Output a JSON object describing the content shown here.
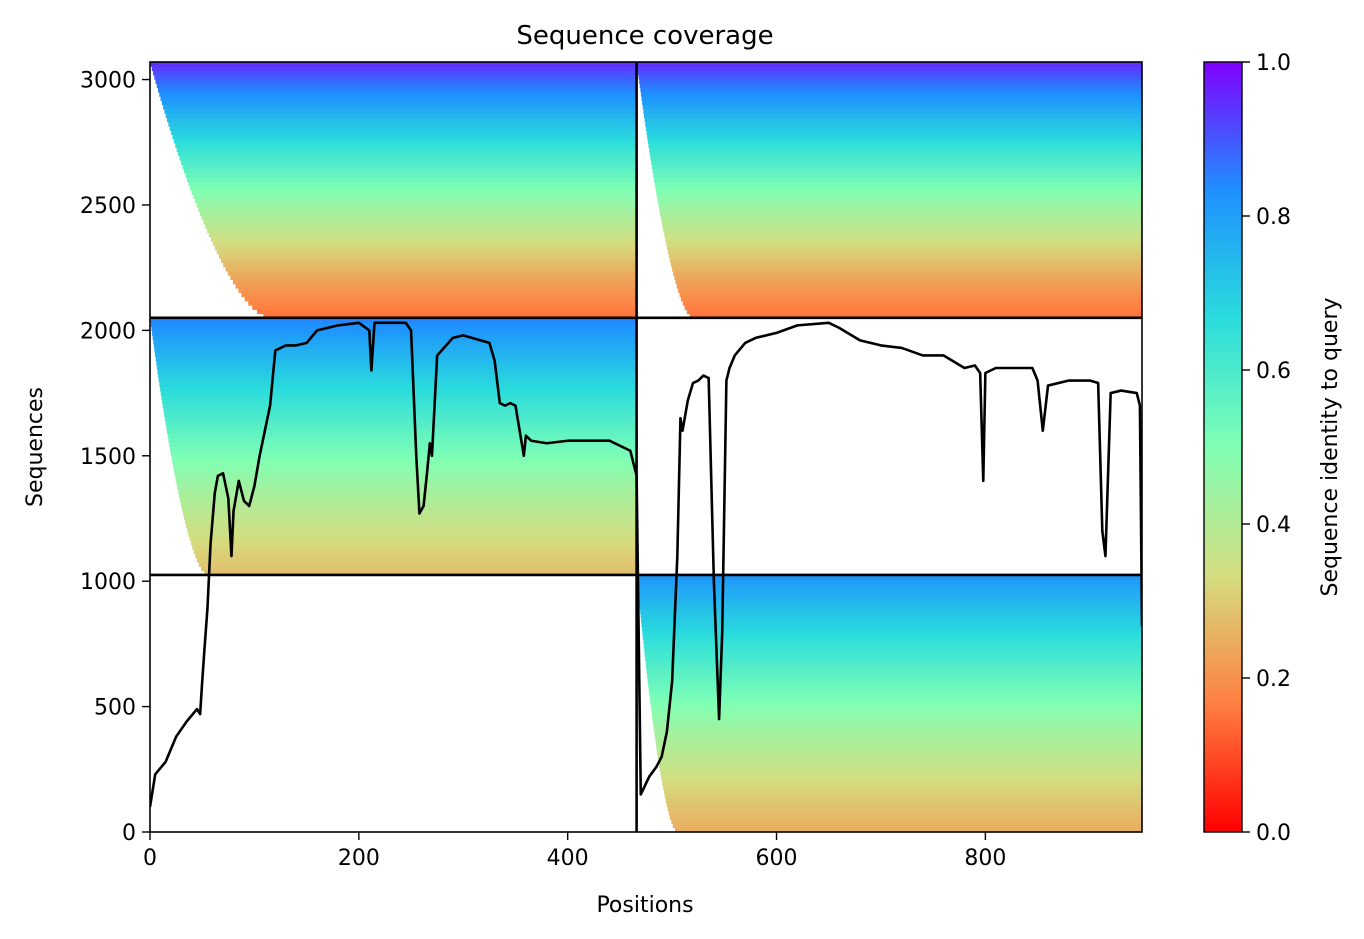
{
  "chart_data": {
    "type": "heatmap",
    "title": "Sequence coverage",
    "xlabel": "Positions",
    "ylabel": "Sequences",
    "xlim": [
      0,
      950
    ],
    "ylim": [
      0,
      3070
    ],
    "x_ticks": [
      0,
      200,
      400,
      600,
      800
    ],
    "y_ticks": [
      0,
      500,
      1000,
      1500,
      2000,
      2500,
      3000
    ],
    "colorbar": {
      "label": "Sequence identity to query",
      "range": [
        0,
        1
      ],
      "ticks": [
        "0.0",
        "0.2",
        "0.4",
        "0.6",
        "0.8",
        "1.0"
      ],
      "colormap": "rainbow_r",
      "colors": [
        "#ff0000",
        "#ff7f41",
        "#d4dd80",
        "#80ffb4",
        "#2adcdc",
        "#1e90ff",
        "#7f00ff"
      ]
    },
    "grid": false,
    "block_boundaries": {
      "x": 466,
      "y": [
        1025,
        2050
      ]
    },
    "blocks": [
      {
        "name": "upper-left",
        "x": [
          0,
          466
        ],
        "y": [
          2050,
          3070
        ],
        "identity_bottom": 0.15,
        "identity_top": 0.95,
        "coverage_start_top": 0,
        "coverage_start_bottom": 115
      },
      {
        "name": "upper-right",
        "x": [
          466,
          950
        ],
        "y": [
          2050,
          3070
        ],
        "identity_bottom": 0.15,
        "identity_top": 0.95,
        "coverage_start_top": 466,
        "coverage_start_bottom": 520
      },
      {
        "name": "middle-left",
        "x": [
          0,
          466
        ],
        "y": [
          1025,
          2050
        ],
        "identity_bottom": 0.28,
        "identity_top": 0.85,
        "coverage_start_top": 0,
        "coverage_start_bottom": 55
      },
      {
        "name": "lower-right",
        "x": [
          466,
          950
        ],
        "y": [
          0,
          1025
        ],
        "identity_bottom": 0.25,
        "identity_top": 0.82,
        "coverage_start_top": 466,
        "coverage_start_bottom": 505
      }
    ],
    "series": [
      {
        "type": "line",
        "color": "#000000",
        "x": [
          0,
          5,
          15,
          25,
          35,
          45,
          48,
          50,
          52,
          55,
          58,
          60,
          62,
          65,
          70,
          75,
          78,
          80,
          85,
          90,
          95,
          100,
          105,
          110,
          115,
          120,
          130,
          140,
          150,
          160,
          180,
          200,
          210,
          212,
          215,
          225,
          245,
          250,
          255,
          258,
          262,
          265,
          268,
          270,
          275,
          290,
          300,
          325,
          330,
          335,
          340,
          345,
          350,
          358,
          360,
          365,
          380,
          400,
          440,
          460,
          466,
          470,
          478,
          485,
          490,
          495,
          500,
          505,
          508,
          510,
          515,
          520,
          525,
          530,
          535,
          540,
          545,
          548,
          550,
          552,
          555,
          560,
          570,
          580,
          600,
          620,
          650,
          660,
          680,
          700,
          720,
          740,
          760,
          780,
          790,
          795,
          798,
          800,
          810,
          830,
          845,
          850,
          855,
          860,
          880,
          900,
          908,
          912,
          915,
          920,
          930,
          945,
          948,
          950
        ],
        "y": [
          100,
          230,
          280,
          380,
          440,
          490,
          470,
          600,
          720,
          890,
          1150,
          1250,
          1350,
          1420,
          1430,
          1330,
          1100,
          1280,
          1400,
          1320,
          1300,
          1380,
          1500,
          1600,
          1700,
          1920,
          1940,
          1940,
          1950,
          2000,
          2020,
          2030,
          2000,
          1840,
          2030,
          2030,
          2030,
          2000,
          1500,
          1270,
          1300,
          1420,
          1550,
          1500,
          1900,
          1970,
          1980,
          1950,
          1880,
          1710,
          1700,
          1710,
          1700,
          1500,
          1580,
          1560,
          1550,
          1560,
          1560,
          1520,
          1420,
          150,
          220,
          260,
          300,
          400,
          600,
          1100,
          1650,
          1600,
          1720,
          1790,
          1800,
          1820,
          1810,
          1000,
          450,
          800,
          1300,
          1800,
          1850,
          1900,
          1950,
          1970,
          1990,
          2020,
          2030,
          2010,
          1960,
          1940,
          1930,
          1900,
          1900,
          1850,
          1860,
          1830,
          1400,
          1830,
          1850,
          1850,
          1850,
          1800,
          1600,
          1780,
          1800,
          1800,
          1790,
          1200,
          1100,
          1750,
          1760,
          1750,
          1700,
          820
        ]
      }
    ]
  }
}
